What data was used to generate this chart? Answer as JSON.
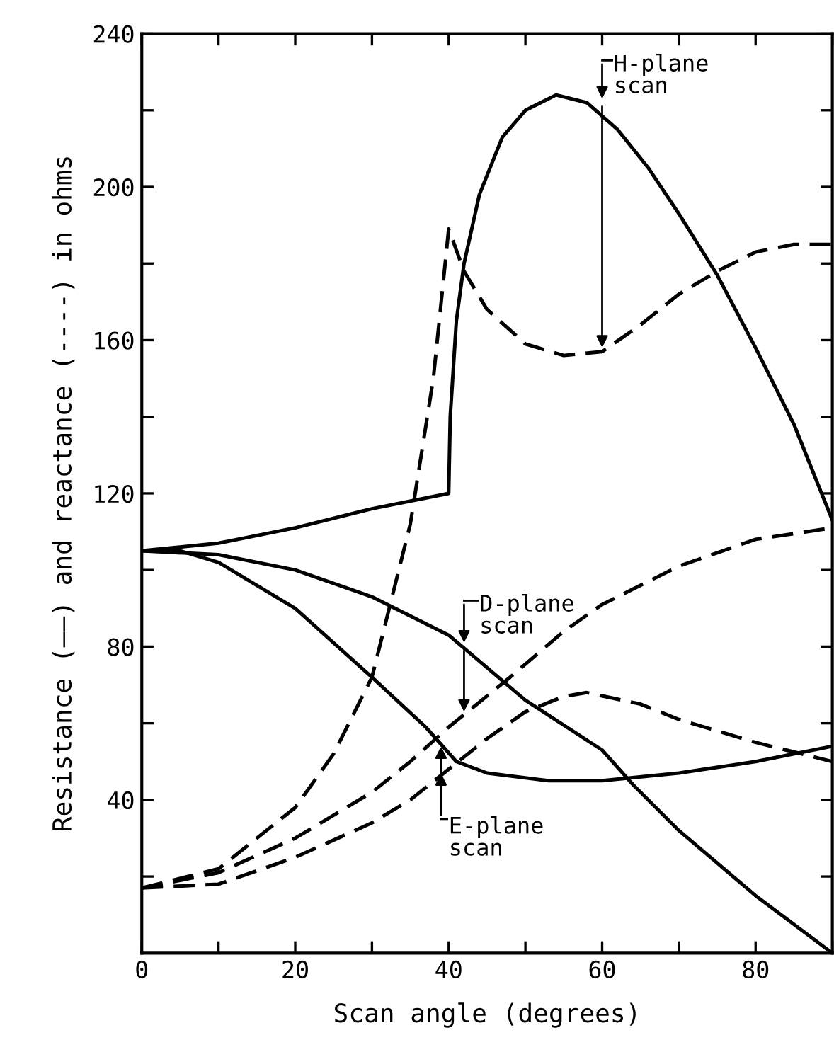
{
  "chart_data": {
    "type": "line",
    "xlabel": "Scan angle (degrees)",
    "ylabel": "Resistance (——) and reactance (----) in ohms",
    "xlim": [
      0,
      90
    ],
    "ylim": [
      0,
      240
    ],
    "xticks": [
      0,
      {
        "value": 10,
        "label": null
      },
      20,
      {
        "value": 30,
        "label": null
      },
      40,
      {
        "value": 50,
        "label": null
      },
      60,
      {
        "value": 70,
        "label": null
      },
      80,
      {
        "value": 90,
        "label": null
      }
    ],
    "yticks": [
      {
        "value": 20,
        "label": null
      },
      40,
      {
        "value": 60,
        "label": null
      },
      80,
      {
        "value": 100,
        "label": null
      },
      120,
      {
        "value": 140,
        "label": null
      },
      160,
      {
        "value": 180,
        "label": null
      },
      200,
      {
        "value": 220,
        "label": null
      },
      240
    ],
    "grid": false,
    "marker": "none",
    "series": [
      {
        "color": "#000000",
        "line_style": "solid",
        "x": [
          0,
          10,
          20,
          30,
          40,
          40.2,
          41,
          42,
          44,
          47,
          50,
          54,
          58,
          62,
          66,
          70,
          75,
          80,
          85,
          90
        ],
        "values": [
          105,
          107,
          111,
          116,
          120,
          140,
          165,
          180,
          198,
          213,
          220,
          224,
          222,
          215,
          205,
          193,
          177,
          158,
          138,
          113
        ]
      },
      {
        "color": "#000000",
        "line_style": "dashed",
        "x": [
          0,
          10,
          20,
          25,
          30,
          35,
          38,
          40,
          42,
          45,
          50,
          55,
          60,
          65,
          70,
          75,
          80,
          85,
          90
        ],
        "values": [
          17,
          22,
          38,
          52,
          72,
          112,
          150,
          189,
          178,
          168,
          159,
          156,
          157,
          164,
          172,
          178,
          183,
          185,
          185
        ]
      },
      {
        "color": "#000000",
        "line_style": "solid",
        "x": [
          0,
          10,
          20,
          30,
          40,
          50,
          60,
          64,
          70,
          80,
          90
        ],
        "values": [
          105,
          104,
          100,
          93,
          83,
          66,
          53,
          44,
          32,
          15,
          0
        ]
      },
      {
        "color": "#000000",
        "line_style": "dashed",
        "x": [
          0,
          10,
          20,
          30,
          35,
          40,
          48,
          55,
          60,
          70,
          80,
          90
        ],
        "values": [
          17,
          21,
          30,
          42,
          50,
          59,
          72,
          84,
          91,
          101,
          108,
          111
        ]
      },
      {
        "color": "#000000",
        "line_style": "solid",
        "x": [
          0,
          5,
          10,
          20,
          30,
          37,
          41,
          45,
          53,
          60,
          70,
          80,
          90
        ],
        "values": [
          105,
          105,
          102,
          90,
          72,
          59,
          50,
          47,
          45,
          45,
          47,
          50,
          54
        ]
      },
      {
        "color": "#000000",
        "line_style": "dashed",
        "x": [
          0,
          10,
          20,
          30,
          35,
          40,
          45,
          50,
          55,
          58,
          65,
          70,
          80,
          90
        ],
        "values": [
          17,
          18,
          25,
          34,
          40,
          48,
          56,
          63,
          67,
          68,
          65,
          61,
          55,
          50
        ]
      }
    ],
    "annotations": [
      {
        "text": "H-plane\nscan",
        "x": 60,
        "y": 157
      },
      {
        "text": "D-plane\nscan",
        "x": 42,
        "y": 62
      },
      {
        "text": "E-plane\nscan",
        "x": 39,
        "y": 55
      }
    ]
  }
}
